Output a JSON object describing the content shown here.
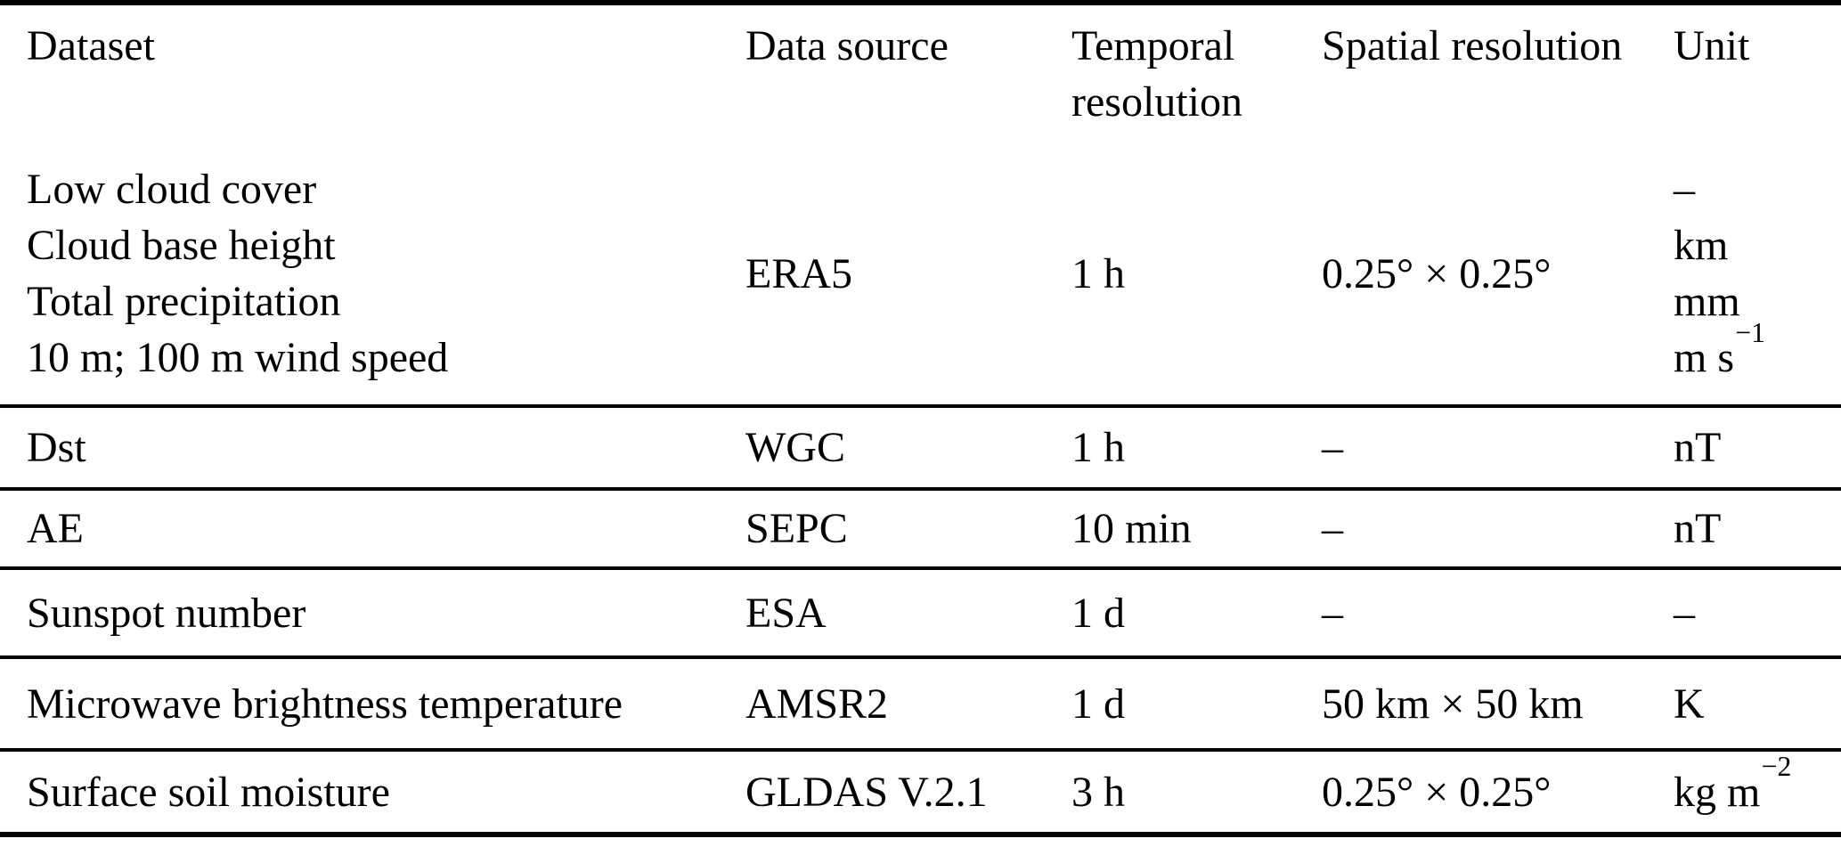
{
  "colors": {
    "background": "#ffffff",
    "text": "#000000",
    "rules": "#000000"
  },
  "table": {
    "columns": [
      {
        "label": "Dataset"
      },
      {
        "label": "Data source"
      },
      {
        "label": "Temporal resolution"
      },
      {
        "label": "Spatial resolution"
      },
      {
        "label": "Unit"
      }
    ],
    "rows": [
      {
        "dataset_lines": [
          "Low cloud cover",
          "Cloud base height",
          "Total precipitation",
          "10 m; 100 m wind speed"
        ],
        "source": "ERA5",
        "temporal": "1 h",
        "spatial": "0.25° × 0.25°",
        "unit_lines": [
          {
            "base": "–"
          },
          {
            "base": "km"
          },
          {
            "base": "mm"
          },
          {
            "base": "m s",
            "sup": "−1"
          }
        ]
      },
      {
        "dataset": "Dst",
        "source": "WGC",
        "temporal": "1 h",
        "spatial": "–",
        "unit": {
          "base": "nT"
        }
      },
      {
        "dataset": "AE",
        "source": "SEPC",
        "temporal": "10 min",
        "spatial": "–",
        "unit": {
          "base": "nT"
        }
      },
      {
        "dataset": "Sunspot number",
        "source": "ESA",
        "temporal": "1 d",
        "spatial": "–",
        "unit": {
          "base": "–"
        }
      },
      {
        "dataset": "Microwave brightness temperature",
        "source": "AMSR2",
        "temporal": "1 d",
        "spatial": "50 km × 50 km",
        "unit": {
          "base": "K"
        }
      },
      {
        "dataset": "Surface soil moisture",
        "source": "GLDAS V.2.1",
        "temporal": "3 h",
        "spatial": "0.25° × 0.25°",
        "unit": {
          "base": "kg m",
          "sup": "−2"
        }
      }
    ]
  }
}
